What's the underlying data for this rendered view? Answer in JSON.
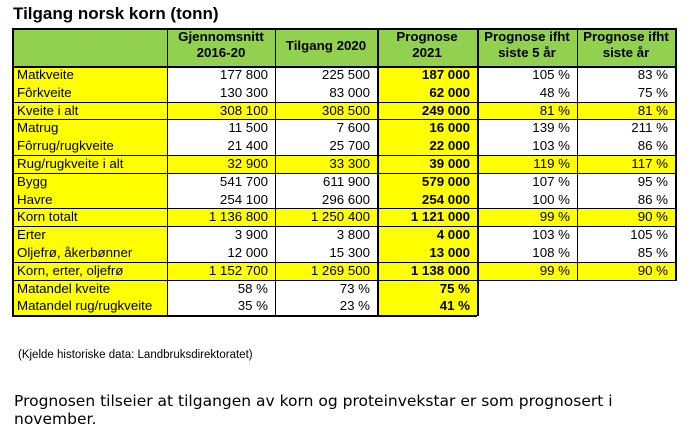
{
  "title": "Tilgang norsk korn (tonn)",
  "headers": [
    "Gjennomsnitt 2016-20",
    "Tilgang 2020",
    "Prognose 2021",
    "Prognose ifht siste 5 år",
    "Prognose ifht siste år"
  ],
  "header_lines": [
    [
      "Gjennomsnitt",
      "2016-20"
    ],
    [
      "Tilgang 2020"
    ],
    [
      "Prognose",
      "2021"
    ],
    [
      "Prognose ifht",
      "siste 5 år"
    ],
    [
      "Prognose ifht",
      "siste år"
    ]
  ],
  "rows": [
    {
      "label": "Matkveite",
      "avg": "177 800",
      "y2020": "225 500",
      "prog": "187 000",
      "p5": "105 %",
      "p1": "83 %"
    },
    {
      "label": "Fôrkveite",
      "avg": "130 300",
      "y2020": "83 000",
      "prog": "62 000",
      "p5": "48 %",
      "p1": "75 %"
    },
    {
      "label": "Kveite i alt",
      "avg": "308 100",
      "y2020": "308 500",
      "prog": "249 000",
      "p5": "81 %",
      "p1": "81 %"
    },
    {
      "label": "Matrug",
      "avg": "11 500",
      "y2020": "7 600",
      "prog": "16 000",
      "p5": "139 %",
      "p1": "211 %"
    },
    {
      "label": "Fôrrug/rugkveite",
      "avg": "21 400",
      "y2020": "25 700",
      "prog": "22 000",
      "p5": "103 %",
      "p1": "86 %"
    },
    {
      "label": "Rug/rugkveite i alt",
      "avg": "32 900",
      "y2020": "33 300",
      "prog": "39 000",
      "p5": "119 %",
      "p1": "117 %"
    },
    {
      "label": "Bygg",
      "avg": "541 700",
      "y2020": "611 900",
      "prog": "579 000",
      "p5": "107 %",
      "p1": "95 %"
    },
    {
      "label": "Havre",
      "avg": "254 100",
      "y2020": "296 600",
      "prog": "254 000",
      "p5": "100 %",
      "p1": "86 %"
    },
    {
      "label": "Korn totalt",
      "avg": "1 136 800",
      "y2020": "1 250 400",
      "prog": "1 121 000",
      "p5": "99 %",
      "p1": "90 %"
    },
    {
      "label": "Erter",
      "avg": "3 900",
      "y2020": "3 800",
      "prog": "4 000",
      "p5": "103 %",
      "p1": "105 %"
    },
    {
      "label": "Oljefrø, åkerbønner",
      "avg": "12 000",
      "y2020": "15 300",
      "prog": "13 000",
      "p5": "108 %",
      "p1": "85 %"
    },
    {
      "label": "Korn, erter, oljefrø",
      "avg": "1 152 700",
      "y2020": "1 269 500",
      "prog": "1 138 000",
      "p5": "99 %",
      "p1": "90 %"
    },
    {
      "label": "Matandel kveite",
      "avg": "58 %",
      "y2020": "73 %",
      "prog": "75 %",
      "p5": "",
      "p1": ""
    },
    {
      "label": "Matandel rug/rugkveite",
      "avg": "35 %",
      "y2020": "23 %",
      "prog": "41 %",
      "p5": "",
      "p1": ""
    }
  ],
  "note": "(Kjelde historiske data: Landbruksdirektoratet)",
  "caption": "Prognosen tilseier at tilgangen av korn og proteinvekstar er som prognosert i november.",
  "colors": {
    "header_bg": "#92d050",
    "highlight": "#ffff00",
    "text": "#000000",
    "border": "#000000"
  }
}
